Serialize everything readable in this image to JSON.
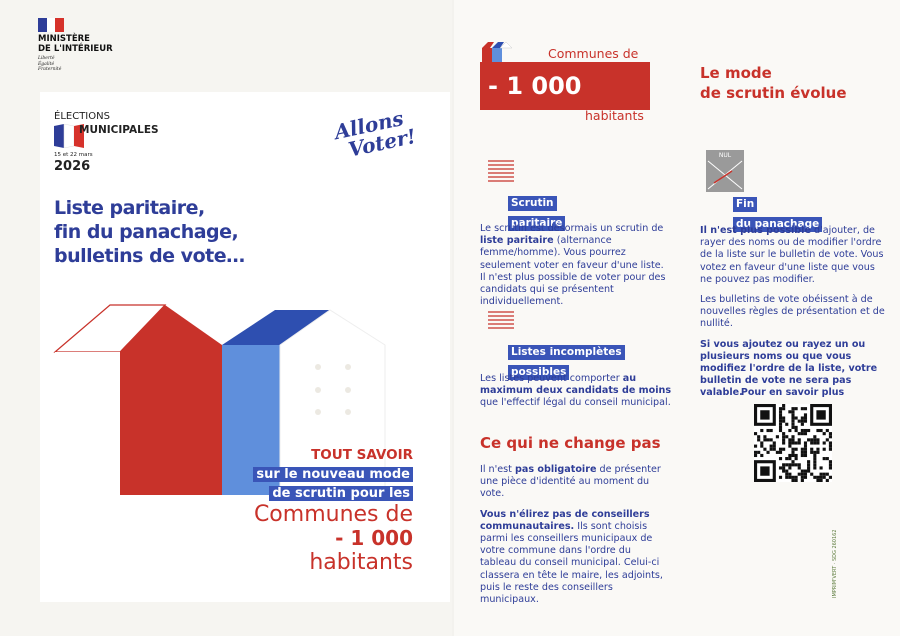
{
  "left": {
    "ministry": [
      "MINISTÈRE",
      "DE L'INTÉRIEUR"
    ],
    "motto": [
      "Liberté",
      "Égalité",
      "Fraternité"
    ],
    "election": {
      "label": "ÉLECTIONS",
      "type": "MUNICIPALES",
      "dates": "15 et 22 mars",
      "year": "2026"
    },
    "slogan": [
      "Allons",
      "Voter!"
    ],
    "headline": [
      "Liste paritaire,",
      "fin du panachage,",
      "bulletins de vote…"
    ],
    "banner_title": "TOUT SAVOIR",
    "banner": [
      "sur le nouveau mode",
      "de scrutin pour les"
    ],
    "communes": [
      "Communes de",
      "- 1 000",
      "habitants"
    ]
  },
  "right": {
    "header": [
      "Communes de",
      "- 1 000",
      "habitants"
    ],
    "title": [
      "Le mode",
      "de scrutin évolue"
    ],
    "sections": [
      {
        "label": [
          "Scrutin",
          "paritaire"
        ],
        "paragraphs": [
          [
            "Le scrutin est désormais un scrutin de ",
            {
              "strong": "liste paritaire"
            },
            " (alternance femme/homme). Vous pourrez seulement voter en faveur d'une liste. Il n'est plus possible de voter pour des candidats qui se présentent individuellement."
          ]
        ]
      },
      {
        "label": [
          "Listes incomplètes",
          "possibles"
        ],
        "paragraphs": [
          [
            "Les listes peuvent comporter ",
            {
              "strong": "au maximum deux candidats de moins"
            },
            " que l'effectif légal du conseil municipal."
          ]
        ]
      },
      {
        "icon": "NUL",
        "label": [
          "Fin",
          "du panachage"
        ],
        "paragraphs": [
          [
            {
              "strong": "Il n'est plus possible"
            },
            " d'ajouter, de rayer des noms ou de modifier l'ordre de la liste sur le bulletin de vote. Vous votez en faveur d'une liste que vous ne pouvez pas modifier."
          ],
          [
            "Les bulletins de vote obéissent à de nouvelles règles de présentation et de nullité."
          ],
          [
            {
              "strong": "Si vous ajoutez ou rayez un ou plusieurs noms ou que vous modifiez l'ordre de la liste, votre bulletin de vote ne sera pas valable."
            }
          ]
        ]
      }
    ],
    "unchanged": {
      "title": "Ce qui ne change pas",
      "paragraphs": [
        [
          "Il n'est ",
          {
            "strong": "pas obligatoire"
          },
          " de présenter une pièce d'identité au moment du vote."
        ],
        [
          {
            "strong": "Vous n'élirez pas de conseillers communautaires."
          },
          " Ils sont choisis parmi les conseillers municipaux de votre commune dans l'ordre du tableau du conseil municipal. Celui-ci classera en tête le maire, les adjoints, puis le reste des conseillers municipaux."
        ]
      ]
    },
    "more": "Pour en savoir plus",
    "imprint": "IMPRIM'VERT · SDG 260162"
  }
}
